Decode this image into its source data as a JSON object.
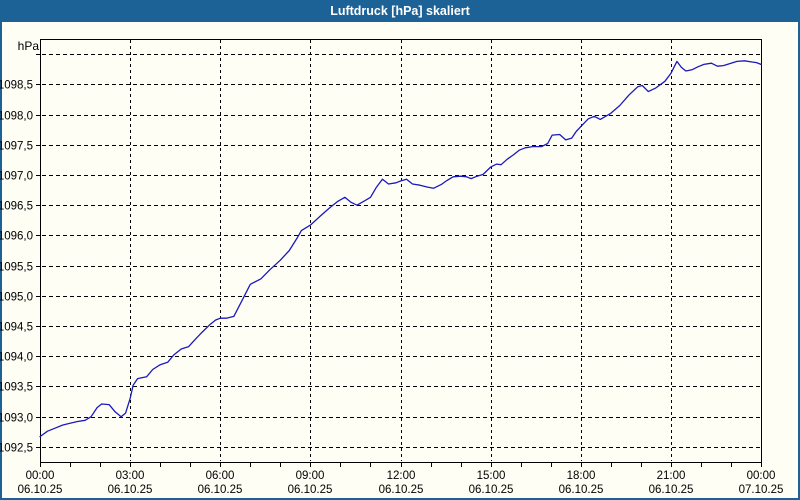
{
  "window": {
    "title": "Luftdruck [hPa] skaliert"
  },
  "colors": {
    "title_bar": "#1d6296",
    "title_text": "#ffffff",
    "frame_border": "#1d6296",
    "background": "#fffef5",
    "grid": "#000000",
    "axis": "#000000",
    "label_text": "#000000",
    "line": "#1a1abe"
  },
  "chart_data": {
    "type": "line",
    "title": "Luftdruck [hPa] skaliert",
    "unit_label": "hPa",
    "ylabel": "hPa",
    "xlabel": "",
    "grid": true,
    "legend": "none",
    "xlim_hours": [
      0,
      24
    ],
    "ylim": [
      1092.25,
      1099.25
    ],
    "y_ticks": [
      {
        "value": 1092.5,
        "label": "1092,5"
      },
      {
        "value": 1093.0,
        "label": "1093,0"
      },
      {
        "value": 1093.5,
        "label": "1093,5"
      },
      {
        "value": 1094.0,
        "label": "1094,0"
      },
      {
        "value": 1094.5,
        "label": "1094,5"
      },
      {
        "value": 1095.0,
        "label": "1095,0"
      },
      {
        "value": 1095.5,
        "label": "1095,5"
      },
      {
        "value": 1096.0,
        "label": "1096,0"
      },
      {
        "value": 1096.5,
        "label": "1096,5"
      },
      {
        "value": 1097.0,
        "label": "1097,0"
      },
      {
        "value": 1097.5,
        "label": "1097,5"
      },
      {
        "value": 1098.0,
        "label": "1098,0"
      },
      {
        "value": 1098.5,
        "label": "1098,5"
      },
      {
        "value": 1099.0,
        "label": ""
      }
    ],
    "x_minor_tick_hours": 1,
    "x_ticks": [
      {
        "hour": 0,
        "time": "00:00",
        "date": "06.10.25"
      },
      {
        "hour": 3,
        "time": "03:00",
        "date": "06.10.25"
      },
      {
        "hour": 6,
        "time": "06:00",
        "date": "06.10.25"
      },
      {
        "hour": 9,
        "time": "09:00",
        "date": "06.10.25"
      },
      {
        "hour": 12,
        "time": "12:00",
        "date": "06.10.25"
      },
      {
        "hour": 15,
        "time": "15:00",
        "date": "06.10.25"
      },
      {
        "hour": 18,
        "time": "18:00",
        "date": "06.10.25"
      },
      {
        "hour": 21,
        "time": "21:00",
        "date": "06.10.25"
      },
      {
        "hour": 24,
        "time": "00:00",
        "date": "07.10.25"
      }
    ],
    "series": [
      {
        "name": "Luftdruck",
        "color": "#1a1abe",
        "points": [
          [
            0.0,
            1092.67
          ],
          [
            0.25,
            1092.76
          ],
          [
            0.5,
            1092.81
          ],
          [
            0.75,
            1092.86
          ],
          [
            1.0,
            1092.89
          ],
          [
            1.25,
            1092.92
          ],
          [
            1.5,
            1092.94
          ],
          [
            1.7,
            1093.0
          ],
          [
            1.9,
            1093.15
          ],
          [
            2.05,
            1093.21
          ],
          [
            2.3,
            1093.2
          ],
          [
            2.5,
            1093.08
          ],
          [
            2.7,
            1093.0
          ],
          [
            2.85,
            1093.06
          ],
          [
            3.0,
            1093.3
          ],
          [
            3.1,
            1093.52
          ],
          [
            3.25,
            1093.63
          ],
          [
            3.55,
            1093.66
          ],
          [
            3.75,
            1093.78
          ],
          [
            4.0,
            1093.86
          ],
          [
            4.25,
            1093.9
          ],
          [
            4.45,
            1094.02
          ],
          [
            4.7,
            1094.12
          ],
          [
            4.95,
            1094.16
          ],
          [
            5.15,
            1094.27
          ],
          [
            5.4,
            1094.4
          ],
          [
            5.65,
            1094.52
          ],
          [
            5.85,
            1094.6
          ],
          [
            6.0,
            1094.63
          ],
          [
            6.2,
            1094.63
          ],
          [
            6.45,
            1094.66
          ],
          [
            6.7,
            1094.9
          ],
          [
            7.0,
            1095.19
          ],
          [
            7.35,
            1095.28
          ],
          [
            7.65,
            1095.43
          ],
          [
            8.0,
            1095.59
          ],
          [
            8.3,
            1095.75
          ],
          [
            8.55,
            1095.95
          ],
          [
            8.7,
            1096.08
          ],
          [
            9.0,
            1096.17
          ],
          [
            9.35,
            1096.33
          ],
          [
            9.65,
            1096.46
          ],
          [
            9.9,
            1096.56
          ],
          [
            10.15,
            1096.63
          ],
          [
            10.35,
            1096.55
          ],
          [
            10.55,
            1096.5
          ],
          [
            10.8,
            1096.57
          ],
          [
            11.0,
            1096.63
          ],
          [
            11.2,
            1096.8
          ],
          [
            11.4,
            1096.93
          ],
          [
            11.6,
            1096.85
          ],
          [
            11.85,
            1096.87
          ],
          [
            12.0,
            1096.9
          ],
          [
            12.2,
            1096.93
          ],
          [
            12.4,
            1096.85
          ],
          [
            12.65,
            1096.83
          ],
          [
            12.9,
            1096.8
          ],
          [
            13.1,
            1096.78
          ],
          [
            13.35,
            1096.84
          ],
          [
            13.55,
            1096.91
          ],
          [
            13.75,
            1096.97
          ],
          [
            14.0,
            1096.98
          ],
          [
            14.2,
            1096.97
          ],
          [
            14.35,
            1096.94
          ],
          [
            14.55,
            1096.98
          ],
          [
            14.75,
            1097.01
          ],
          [
            15.0,
            1097.13
          ],
          [
            15.2,
            1097.18
          ],
          [
            15.35,
            1097.17
          ],
          [
            15.55,
            1097.26
          ],
          [
            15.75,
            1097.33
          ],
          [
            15.95,
            1097.41
          ],
          [
            16.15,
            1097.45
          ],
          [
            16.4,
            1097.47
          ],
          [
            16.7,
            1097.47
          ],
          [
            16.9,
            1097.52
          ],
          [
            17.05,
            1097.66
          ],
          [
            17.3,
            1097.67
          ],
          [
            17.5,
            1097.58
          ],
          [
            17.7,
            1097.61
          ],
          [
            17.85,
            1097.72
          ],
          [
            18.0,
            1097.8
          ],
          [
            18.25,
            1097.93
          ],
          [
            18.45,
            1097.97
          ],
          [
            18.65,
            1097.92
          ],
          [
            19.0,
            1098.02
          ],
          [
            19.3,
            1098.15
          ],
          [
            19.6,
            1098.32
          ],
          [
            19.9,
            1098.46
          ],
          [
            20.05,
            1098.48
          ],
          [
            20.25,
            1098.38
          ],
          [
            20.5,
            1098.44
          ],
          [
            20.8,
            1098.55
          ],
          [
            21.0,
            1098.68
          ],
          [
            21.2,
            1098.88
          ],
          [
            21.35,
            1098.78
          ],
          [
            21.5,
            1098.72
          ],
          [
            21.7,
            1098.74
          ],
          [
            21.9,
            1098.79
          ],
          [
            22.1,
            1098.83
          ],
          [
            22.35,
            1098.85
          ],
          [
            22.55,
            1098.8
          ],
          [
            22.75,
            1098.81
          ],
          [
            23.0,
            1098.85
          ],
          [
            23.2,
            1098.88
          ],
          [
            23.45,
            1098.89
          ],
          [
            23.7,
            1098.87
          ],
          [
            23.85,
            1098.86
          ],
          [
            24.0,
            1098.83
          ]
        ]
      }
    ]
  }
}
